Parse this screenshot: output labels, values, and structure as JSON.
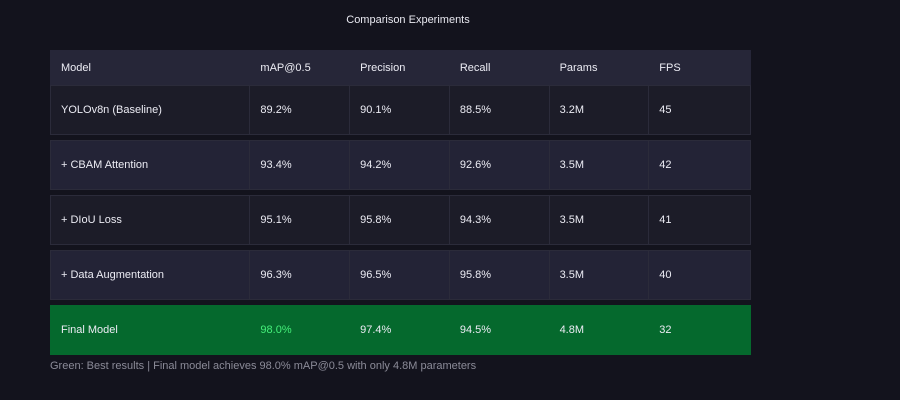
{
  "chart_data": {
    "type": "table",
    "title": "Comparison Experiments",
    "columns": [
      "Model",
      "mAP@0.5",
      "Precision",
      "Recall",
      "Params",
      "FPS"
    ],
    "rows": [
      [
        "YOLOv8n (Baseline)",
        "89.2%",
        "90.1%",
        "88.5%",
        "3.2M",
        "45"
      ],
      [
        "+ CBAM Attention",
        "93.4%",
        "94.2%",
        "92.6%",
        "3.5M",
        "42"
      ],
      [
        "+ DIoU Loss",
        "95.1%",
        "95.8%",
        "94.3%",
        "3.5M",
        "41"
      ],
      [
        "+ Data Augmentation",
        "96.3%",
        "96.5%",
        "95.8%",
        "3.5M",
        "40"
      ],
      [
        "Final Model",
        "98.0%",
        "97.4%",
        "94.5%",
        "4.8M",
        "32"
      ]
    ],
    "highlight_row": 4,
    "highlight_cell": [
      4,
      1
    ],
    "footnote": "Green: Best results | Final model achieves 98.0% mAP@0.5 with only 4.8M parameters"
  },
  "colors": {
    "background": "#13131d",
    "header_bg": "#262638",
    "row_bg": "#1c1c28",
    "row_alt_bg": "#232336",
    "best_row_bg": "#05692d",
    "best_value": "#45f07a"
  }
}
